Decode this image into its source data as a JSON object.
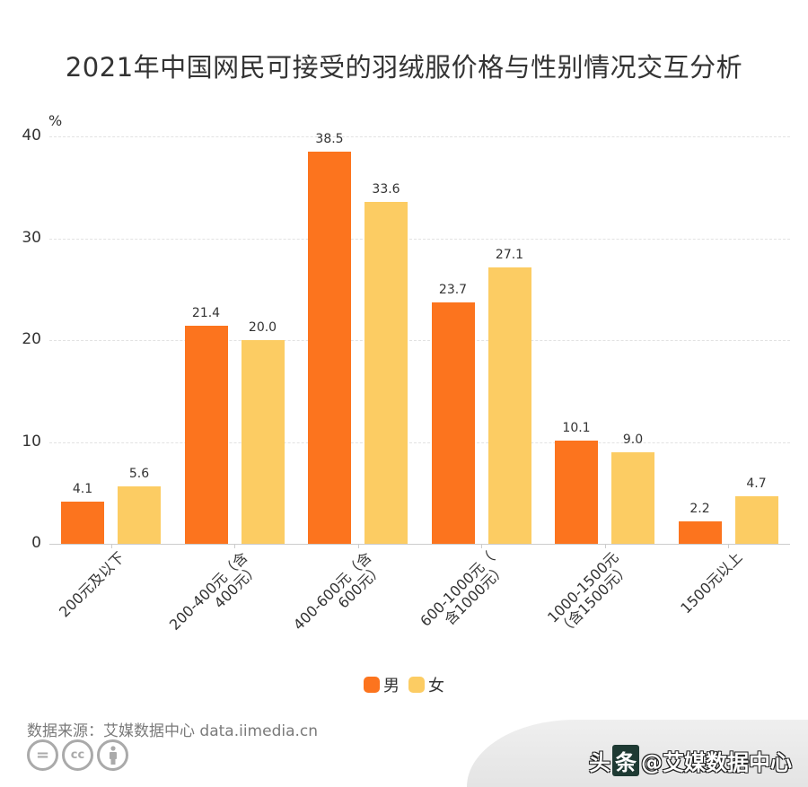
{
  "title": "2021年中国网民可接受的羽绒服价格与性别情况交互分析",
  "chart_data": {
    "type": "bar",
    "title": "2021年中国网民可接受的羽绒服价格与性别情况交互分析",
    "xlabel": "",
    "ylabel": "%",
    "ylim": [
      0,
      40
    ],
    "yticks": [
      "0",
      "10",
      "20",
      "30",
      "40"
    ],
    "grid": true,
    "legend_position": "bottom",
    "categories": [
      "200元及以下",
      "200-400元（含400元）",
      "400-600元（含600元）",
      "600-1000元（含1000元）",
      "1000-1500元（含1500元）",
      "1500元以上"
    ],
    "category_lines": [
      [
        "200元及以下"
      ],
      [
        "200-400元（含",
        "400元）"
      ],
      [
        "400-600元（含",
        "600元）"
      ],
      [
        "600-1000元（",
        "含1000元）"
      ],
      [
        "1000-1500元",
        "（含1500元）"
      ],
      [
        "1500元以上"
      ]
    ],
    "series": [
      {
        "name": "男",
        "color": "#fc741e",
        "values": [
          4.1,
          21.4,
          38.5,
          23.7,
          10.1,
          2.2
        ],
        "labels": [
          "4.1",
          "21.4",
          "38.5",
          "23.7",
          "10.1",
          "2.2"
        ]
      },
      {
        "name": "女",
        "color": "#fccc63",
        "values": [
          5.6,
          20.0,
          33.6,
          27.1,
          9.0,
          4.7
        ],
        "labels": [
          "5.6",
          "20.0",
          "33.6",
          "27.1",
          "9.0",
          "4.7"
        ]
      }
    ]
  },
  "legend": {
    "male": "男",
    "female": "女"
  },
  "footer": {
    "source": "数据来源：艾媒数据中心 data.iimedia.cn",
    "cc_icons": [
      "=",
      "cc",
      "person"
    ],
    "watermark_prefix": "头",
    "watermark_box": "条",
    "watermark_text": "@艾媒数据中心"
  }
}
